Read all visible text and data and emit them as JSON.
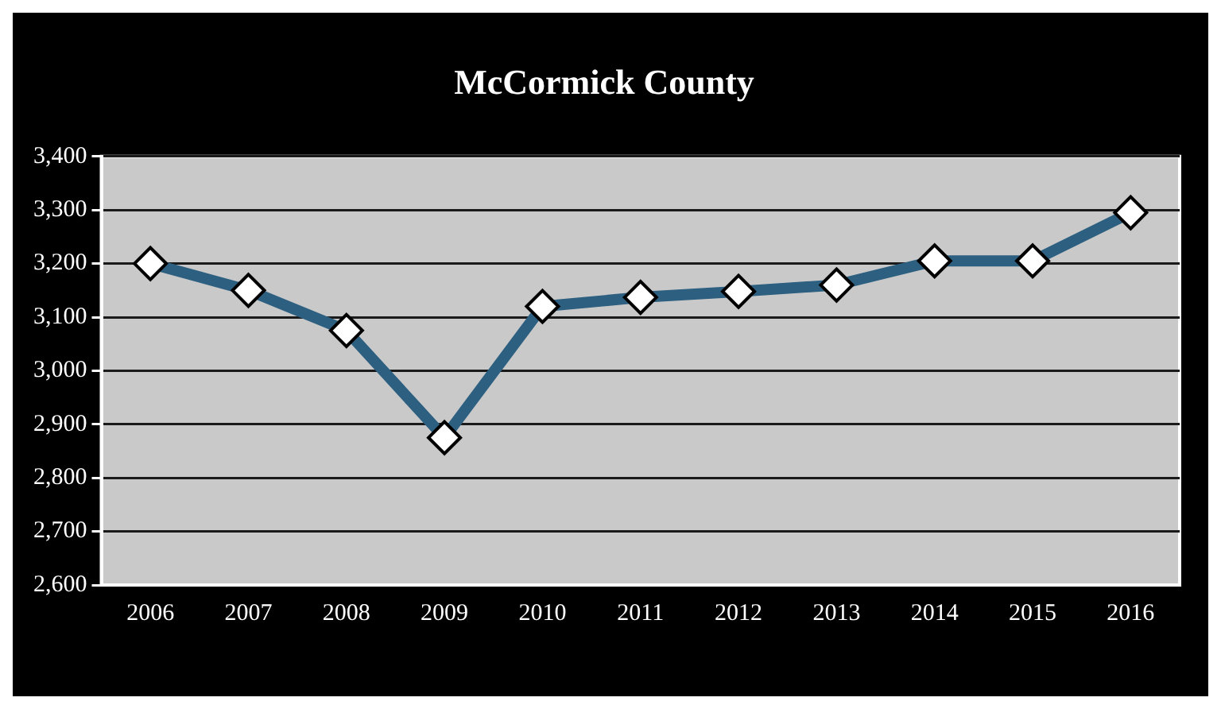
{
  "chart_data": {
    "type": "line",
    "title": "McCormick County",
    "categories": [
      "2006",
      "2007",
      "2008",
      "2009",
      "2010",
      "2011",
      "2012",
      "2013",
      "2014",
      "2015",
      "2016"
    ],
    "series": [
      {
        "color": "#2d5f80",
        "values": [
          3200,
          3150,
          3075,
          2875,
          3120,
          3137,
          3148,
          3160,
          3205,
          3205,
          3295
        ]
      }
    ],
    "ylim": [
      2600,
      3400
    ],
    "yticks": [
      {
        "value": 2600,
        "label": "2,600"
      },
      {
        "value": 2700,
        "label": "2,700"
      },
      {
        "value": 2800,
        "label": "2,800"
      },
      {
        "value": 2900,
        "label": "2,900"
      },
      {
        "value": 3000,
        "label": "3,000"
      },
      {
        "value": 3100,
        "label": "3,100"
      },
      {
        "value": 3200,
        "label": "3,200"
      },
      {
        "value": 3300,
        "label": "3,300"
      },
      {
        "value": 3400,
        "label": "3,400"
      }
    ],
    "grid": "y",
    "legend": false,
    "marker": "diamond",
    "line_style": "solid"
  }
}
